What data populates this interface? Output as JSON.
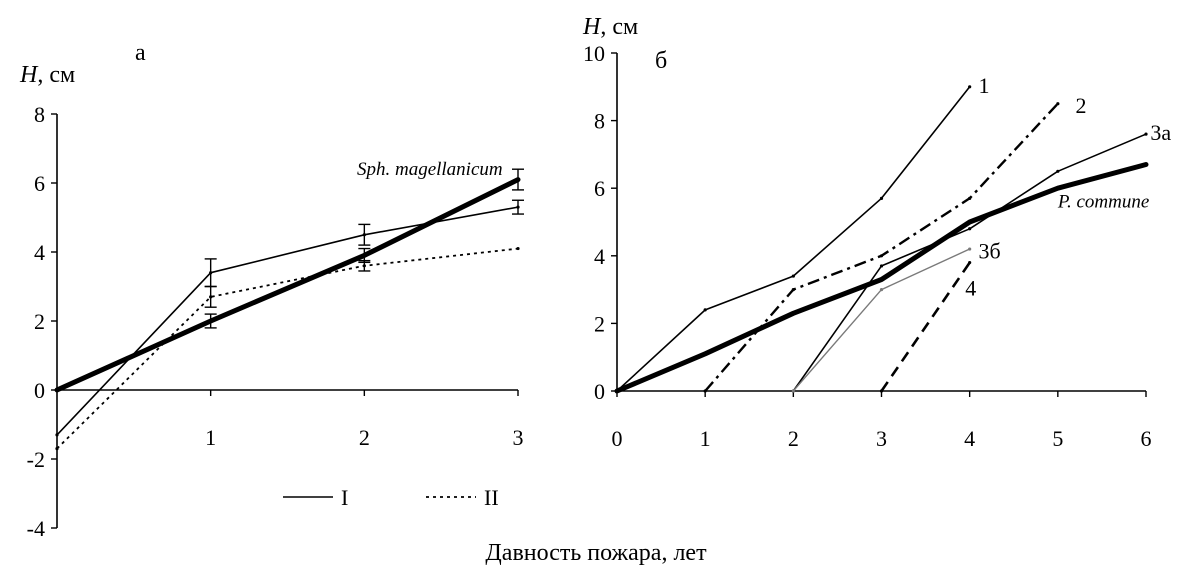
{
  "xlabel": "Давность пожара, лет",
  "chart_data": [
    {
      "type": "line",
      "panel_label": "а",
      "ylabel_var": "H",
      "ylabel_unit": ", см",
      "xlim": [
        0,
        3
      ],
      "ylim": [
        -4,
        8
      ],
      "x_ticks": [
        "1",
        "2",
        "3"
      ],
      "y_ticks": [
        "-4",
        "-2",
        "0",
        "2",
        "4",
        "6",
        "8"
      ],
      "legend": {
        "position": "bottom-right",
        "items": [
          {
            "label": "I",
            "style": "solid"
          },
          {
            "label": "II",
            "style": "dotted"
          }
        ]
      },
      "series": [
        {
          "name": "I",
          "style": "solid",
          "x": [
            0,
            1,
            2,
            3
          ],
          "y": [
            -1.3,
            3.4,
            4.5,
            5.3
          ],
          "error": [
            null,
            0.4,
            0.3,
            0.2
          ]
        },
        {
          "name": "II",
          "style": "dotted",
          "x": [
            0,
            1,
            2,
            3
          ],
          "y": [
            -1.7,
            2.7,
            3.6,
            4.1
          ],
          "error": [
            null,
            0.3,
            0.15,
            null
          ]
        },
        {
          "name": "Sph. magellanicum",
          "style": "bold",
          "x": [
            0,
            1,
            2,
            3
          ],
          "y": [
            0,
            2.0,
            3.9,
            6.1
          ],
          "error": [
            null,
            0.2,
            0.2,
            0.3
          ]
        }
      ],
      "annotations": [
        {
          "text": "Sph. magellanicum",
          "x": 2.9,
          "y": 6.4,
          "italic": true,
          "anchor": "end"
        }
      ]
    },
    {
      "type": "line",
      "panel_label": "б",
      "ylabel_var": "H",
      "ylabel_unit": ", см",
      "xlim": [
        0,
        6
      ],
      "ylim": [
        0,
        10
      ],
      "x_ticks": [
        "0",
        "1",
        "2",
        "3",
        "4",
        "5",
        "6"
      ],
      "y_ticks": [
        "0",
        "2",
        "4",
        "6",
        "8",
        "10"
      ],
      "series": [
        {
          "name": "1",
          "style": "solid",
          "x": [
            0,
            1,
            2,
            3,
            4
          ],
          "y": [
            0,
            2.4,
            3.4,
            5.7,
            9.0
          ]
        },
        {
          "name": "2",
          "style": "dashdot",
          "x": [
            1,
            2,
            3,
            4,
            5
          ],
          "y": [
            0,
            3.0,
            4.0,
            5.7,
            8.5
          ]
        },
        {
          "name": "3а",
          "style": "solid",
          "x": [
            2,
            3,
            4,
            5,
            6
          ],
          "y": [
            0,
            3.7,
            4.8,
            6.5,
            7.6
          ]
        },
        {
          "name": "3б",
          "style": "thin-grey",
          "x": [
            2,
            3,
            4
          ],
          "y": [
            0,
            3.0,
            4.2
          ]
        },
        {
          "name": "4",
          "style": "dashed",
          "x": [
            3,
            4
          ],
          "y": [
            0,
            3.8
          ]
        },
        {
          "name": "P. commune",
          "style": "bold",
          "x": [
            0,
            1,
            2,
            3,
            4,
            5,
            6
          ],
          "y": [
            0,
            1.1,
            2.3,
            3.3,
            5.0,
            6.0,
            6.7
          ]
        }
      ],
      "annotations": [
        {
          "text": "1",
          "x": 4.1,
          "y": 9.0,
          "italic": false,
          "anchor": "start"
        },
        {
          "text": "2",
          "x": 5.2,
          "y": 8.4,
          "italic": false,
          "anchor": "start"
        },
        {
          "text": "3а",
          "x": 6.05,
          "y": 7.6,
          "italic": false,
          "anchor": "start"
        },
        {
          "text": "3б",
          "x": 4.1,
          "y": 4.1,
          "italic": false,
          "anchor": "start"
        },
        {
          "text": "4",
          "x": 3.95,
          "y": 3.0,
          "italic": false,
          "anchor": "start"
        },
        {
          "text": "P. commune",
          "x": 5.0,
          "y": 5.6,
          "italic": true,
          "anchor": "start"
        }
      ]
    }
  ]
}
